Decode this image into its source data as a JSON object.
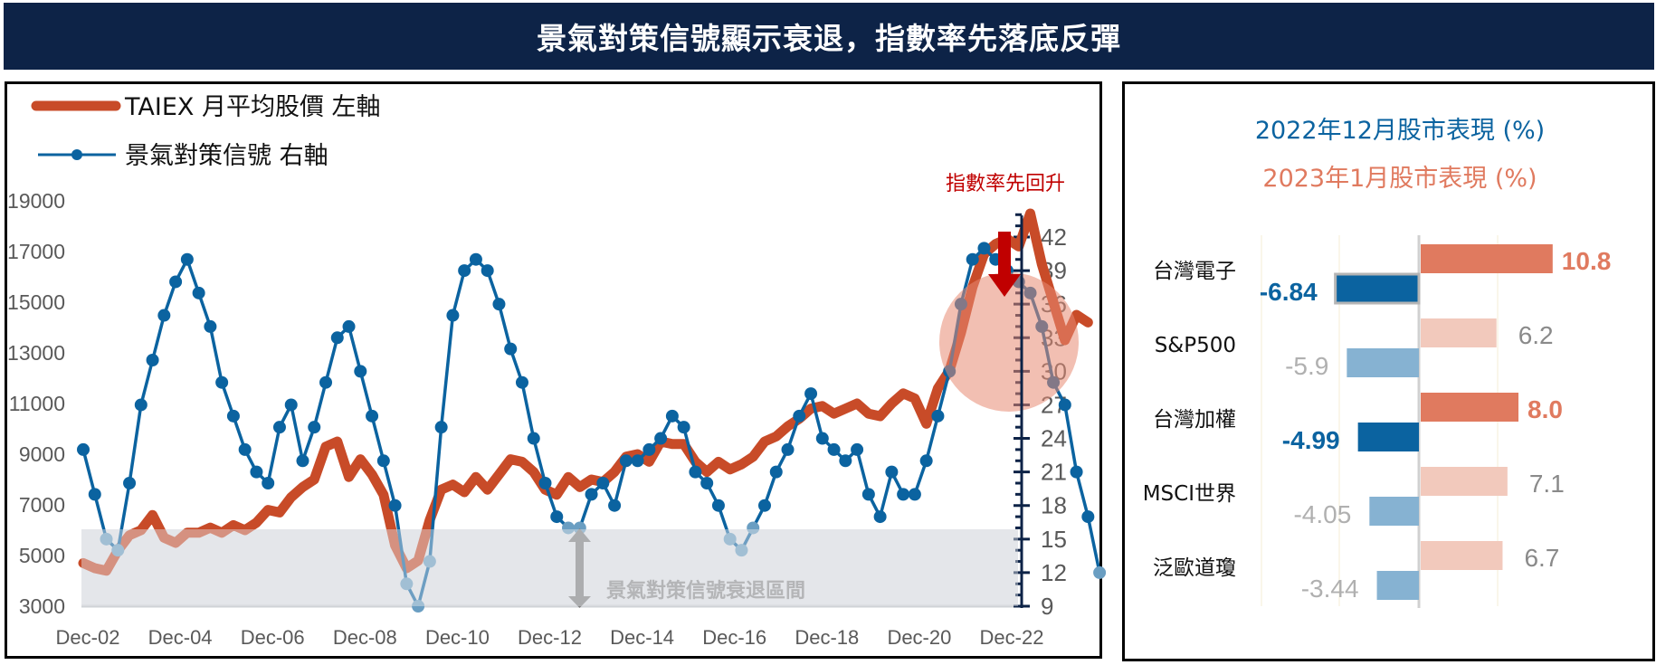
{
  "header": {
    "title": "景氣對策信號顯示衰退，指數率先落底反彈"
  },
  "colors": {
    "title_bg": "#0d2347",
    "taiex_line": "#c84b28",
    "signal_line": "#0b63a0",
    "signal_line_recession": "#6a9ec2",
    "recession_band": "#e4e6ea",
    "highlight_circle": "#e88b72",
    "annotation_red": "#c00000",
    "dec_bar_strong": "#0b63a0",
    "dec_bar_light": "#86b2d2",
    "jan_bar_strong": "#e07a5f",
    "jan_bar_light": "#f2c9bc"
  },
  "left_chart": {
    "legend": {
      "taiex": "TAIEX 月平均股價  左軸",
      "signal": "景氣對策信號  右軸"
    },
    "annotation_top": "指數率先回升",
    "band_label": "景氣對策信號衰退區間"
  },
  "right_chart": {
    "title_dec": "2022年12月股市表現 (%)",
    "title_jan": "2023年1月股市表現 (%)"
  },
  "chart_data": [
    {
      "type": "line",
      "title": "景氣對策信號顯示衰退，指數率先落底反彈",
      "xlabel": "",
      "ylabel_left": "TAIEX 月平均股價",
      "ylabel_right": "景氣對策信號",
      "x_ticks": [
        "Dec-02",
        "Dec-04",
        "Dec-06",
        "Dec-08",
        "Dec-10",
        "Dec-12",
        "Dec-14",
        "Dec-16",
        "Dec-18",
        "Dec-20",
        "Dec-22"
      ],
      "y_left_ticks": [
        19000,
        17000,
        15000,
        13000,
        11000,
        9000,
        7000,
        5000,
        3000
      ],
      "y_right_ticks": [
        42,
        39,
        36,
        33,
        30,
        27,
        24,
        21,
        18,
        15,
        12,
        9
      ],
      "ylim_left": [
        3000,
        19000
      ],
      "ylim_right": [
        9,
        44
      ],
      "recession_band_right_axis": [
        9,
        16
      ],
      "legend_position": "top-left",
      "grid": false,
      "series": [
        {
          "name": "TAIEX 月平均股價",
          "axis": "left",
          "x_start": "Dec-02",
          "step_months": 3,
          "values": [
            4700,
            4500,
            4400,
            5200,
            5800,
            6000,
            6600,
            5700,
            5500,
            5900,
            5900,
            6100,
            5900,
            6200,
            6000,
            6300,
            6800,
            6700,
            7300,
            7700,
            8000,
            9300,
            9500,
            8100,
            8800,
            8200,
            7400,
            5400,
            4500,
            4800,
            6400,
            7600,
            7800,
            7500,
            8100,
            7600,
            8200,
            8800,
            8700,
            8300,
            7600,
            7400,
            8100,
            7700,
            8000,
            7900,
            8300,
            8900,
            9000,
            8700,
            9500,
            9400,
            9400,
            8700,
            8300,
            8700,
            8400,
            8600,
            8900,
            9500,
            9700,
            10100,
            10400,
            10800,
            10900,
            10600,
            10800,
            11000,
            10600,
            10500,
            11000,
            11400,
            11200,
            10200,
            11600,
            12300,
            13800,
            15600,
            16900,
            17300,
            17500,
            17200,
            18500,
            16500,
            15000,
            13500,
            14500,
            14200
          ]
        },
        {
          "name": "景氣對策信號",
          "axis": "right",
          "x_start": "Dec-02",
          "step_months": 3,
          "values": [
            23,
            19,
            15,
            14,
            20,
            27,
            31,
            35,
            38,
            40,
            37,
            34,
            29,
            26,
            23,
            21,
            20,
            25,
            27,
            22,
            25,
            29,
            33,
            34,
            30,
            26,
            22,
            18,
            11,
            9,
            13,
            25,
            35,
            39,
            40,
            39,
            36,
            32,
            29,
            24,
            20,
            17,
            16,
            16,
            19,
            20,
            18,
            22,
            22,
            23,
            24,
            26,
            25,
            21,
            20,
            18,
            15,
            14,
            16,
            18,
            21,
            23,
            26,
            28,
            24,
            23,
            22,
            23,
            19,
            17,
            21,
            19,
            19,
            22,
            26,
            30,
            36,
            40,
            41,
            40,
            39,
            38,
            37,
            34,
            29,
            27,
            21,
            17,
            12
          ]
        }
      ],
      "annotations": [
        "指數率先回升",
        "景氣對策信號衰退區間"
      ]
    },
    {
      "type": "bar",
      "orientation": "horizontal",
      "title": "2022年12月股市表現 (%) / 2023年1月股市表現 (%)",
      "categories": [
        "台灣電子",
        "S&P500",
        "台灣加權",
        "MSCI世界",
        "泛歐道瓊"
      ],
      "series": [
        {
          "name": "2022年12月股市表現 (%)",
          "values": [
            -6.84,
            -5.9,
            -4.99,
            -4.05,
            -3.44
          ]
        },
        {
          "name": "2023年1月股市表現 (%)",
          "values": [
            10.8,
            6.2,
            8.0,
            7.1,
            6.7
          ]
        }
      ],
      "value_labels": {
        "dec": [
          "-6.84",
          "-5.9",
          "-4.99",
          "-4.05",
          "-3.44"
        ],
        "jan": [
          "10.8",
          "6.2",
          "8.0",
          "7.1",
          "6.7"
        ]
      },
      "highlighted": [
        "台灣電子",
        "台灣加權"
      ]
    }
  ]
}
